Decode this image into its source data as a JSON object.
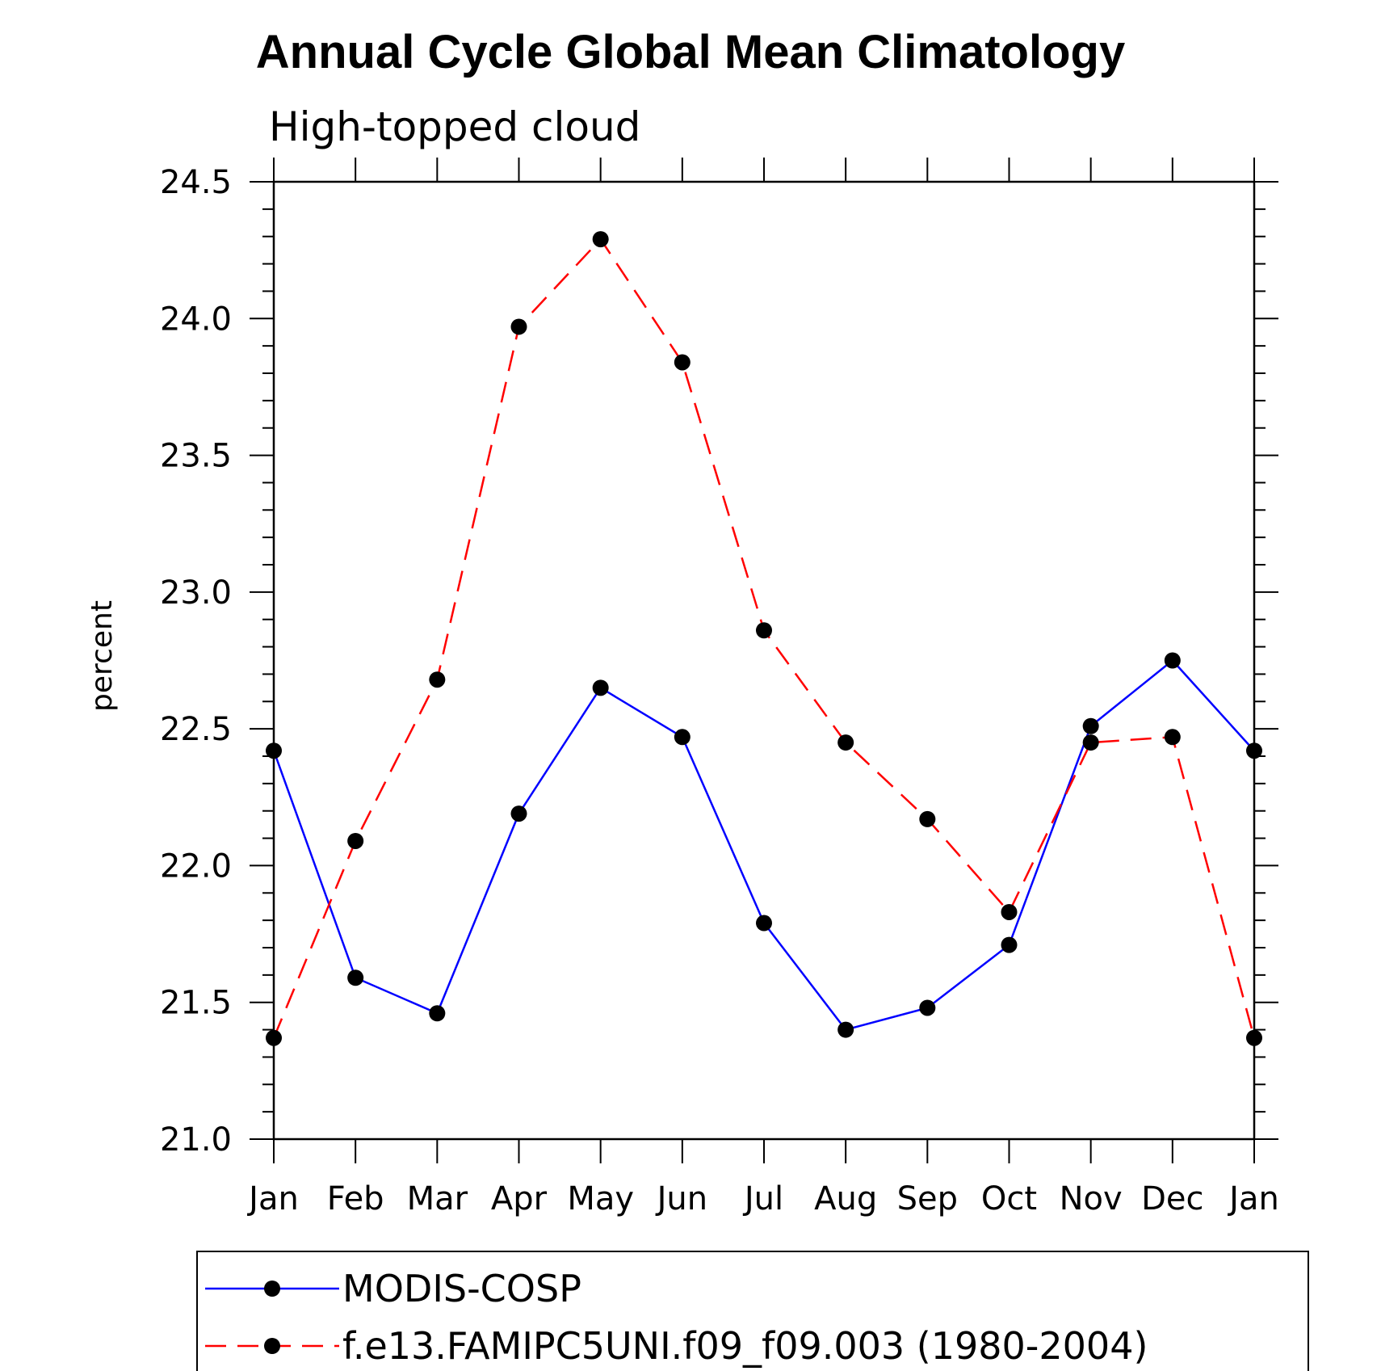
{
  "chart_data": {
    "type": "line",
    "title": "Annual Cycle Global Mean Climatology",
    "subtitle": "High-topped cloud",
    "ylabel": "percent",
    "xlabel": "",
    "categories": [
      "Jan",
      "Feb",
      "Mar",
      "Apr",
      "May",
      "Jun",
      "Jul",
      "Aug",
      "Sep",
      "Oct",
      "Nov",
      "Dec",
      "Jan"
    ],
    "ylim": [
      21.0,
      24.5
    ],
    "yticks": [
      "21.0",
      "21.5",
      "22.0",
      "22.5",
      "23.0",
      "23.5",
      "24.0",
      "24.5"
    ],
    "grid": false,
    "legend_position": "bottom",
    "series": [
      {
        "name": "MODIS-COSP",
        "color": "#0000ff",
        "style": "solid",
        "marker": "filled-circle",
        "values": [
          22.42,
          21.59,
          21.46,
          22.19,
          22.65,
          22.47,
          21.79,
          21.4,
          21.48,
          21.71,
          22.51,
          22.75,
          22.42
        ]
      },
      {
        "name": "f.e13.FAMIPC5UNI.f09_f09.003 (1980-2004)",
        "color": "#ff0000",
        "style": "dashed",
        "marker": "filled-circle",
        "values": [
          21.37,
          22.09,
          22.68,
          23.97,
          24.29,
          23.84,
          22.86,
          22.45,
          22.17,
          21.83,
          22.45,
          22.47,
          21.37
        ]
      }
    ]
  }
}
